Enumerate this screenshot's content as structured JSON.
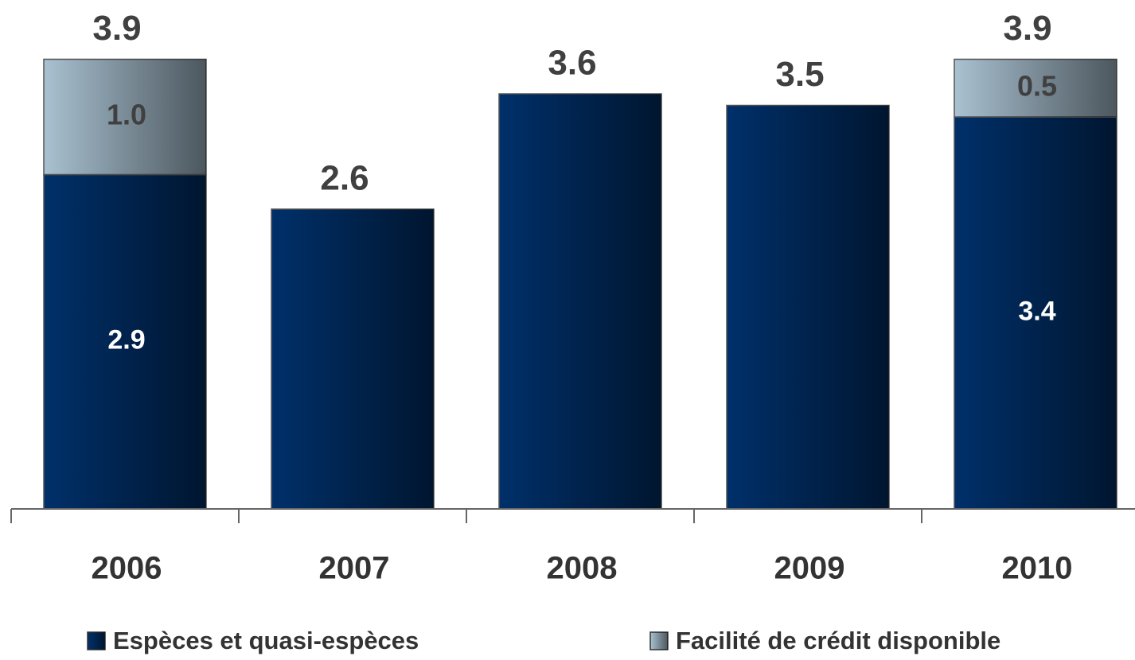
{
  "chart_data": {
    "type": "stacked_bar",
    "categories": [
      "2006",
      "2007",
      "2008",
      "2009",
      "2010"
    ],
    "series": [
      {
        "name": "Espèces et quasi-espèces",
        "color": "#00306a",
        "values": [
          2.9,
          2.6,
          3.6,
          3.5,
          3.4
        ]
      },
      {
        "name": "Facilité de crédit disponible",
        "color": "#a9c1d1",
        "values": [
          1.0,
          null,
          null,
          null,
          0.5
        ],
        "value_labels": [
          "1.0",
          null,
          null,
          null,
          "0.5"
        ]
      }
    ],
    "totals": [
      3.9,
      2.6,
      3.6,
      3.5,
      3.9
    ],
    "ylim": [
      0,
      4.4
    ]
  }
}
